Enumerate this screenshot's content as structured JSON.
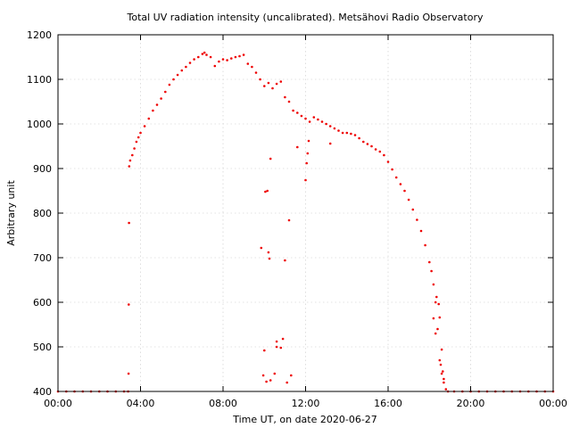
{
  "chart_data": {
    "type": "scatter",
    "title": "Total UV radiation intensity (uncalibrated). Metsähovi Radio Observatory",
    "xlabel": "Time UT, on date 2020-06-27",
    "ylabel": "Arbitrary unit",
    "xlim": [
      0,
      24
    ],
    "ylim": [
      400,
      1200
    ],
    "x_ticks": [
      0,
      4,
      8,
      12,
      16,
      20,
      24
    ],
    "x_tick_labels": [
      "00:00",
      "04:00",
      "08:00",
      "12:00",
      "16:00",
      "20:00",
      "00:00"
    ],
    "y_ticks": [
      400,
      500,
      600,
      700,
      800,
      900,
      1000,
      1100,
      1200
    ],
    "y_tick_labels": [
      "400",
      "500",
      "600",
      "700",
      "800",
      "900",
      "1000",
      "1100",
      "1200"
    ],
    "grid": true,
    "marker_color": "#ee0000",
    "series": [
      {
        "x_unit": "hours UT",
        "points": [
          [
            0.0,
            400
          ],
          [
            0.4,
            400
          ],
          [
            0.8,
            400
          ],
          [
            1.2,
            400
          ],
          [
            1.6,
            400
          ],
          [
            2.0,
            400
          ],
          [
            2.4,
            400
          ],
          [
            2.8,
            400
          ],
          [
            3.2,
            400
          ],
          [
            3.4,
            400
          ],
          [
            3.42,
            440
          ],
          [
            3.43,
            595
          ],
          [
            3.44,
            778
          ],
          [
            3.45,
            905
          ],
          [
            3.5,
            918
          ],
          [
            3.6,
            930
          ],
          [
            3.7,
            945
          ],
          [
            3.8,
            960
          ],
          [
            3.9,
            970
          ],
          [
            4.0,
            980
          ],
          [
            4.2,
            995
          ],
          [
            4.4,
            1012
          ],
          [
            4.6,
            1030
          ],
          [
            4.8,
            1043
          ],
          [
            5.0,
            1057
          ],
          [
            5.2,
            1072
          ],
          [
            5.4,
            1088
          ],
          [
            5.6,
            1100
          ],
          [
            5.8,
            1110
          ],
          [
            6.0,
            1120
          ],
          [
            6.2,
            1128
          ],
          [
            6.4,
            1137
          ],
          [
            6.6,
            1145
          ],
          [
            6.8,
            1150
          ],
          [
            7.0,
            1157
          ],
          [
            7.1,
            1160
          ],
          [
            7.2,
            1155
          ],
          [
            7.4,
            1150
          ],
          [
            7.6,
            1130
          ],
          [
            7.8,
            1140
          ],
          [
            8.0,
            1145
          ],
          [
            8.2,
            1143
          ],
          [
            8.4,
            1147
          ],
          [
            8.6,
            1150
          ],
          [
            8.8,
            1152
          ],
          [
            9.0,
            1155
          ],
          [
            9.2,
            1135
          ],
          [
            9.4,
            1128
          ],
          [
            9.6,
            1115
          ],
          [
            9.8,
            1100
          ],
          [
            10.0,
            1085
          ],
          [
            10.2,
            1092
          ],
          [
            10.4,
            1080
          ],
          [
            10.6,
            1090
          ],
          [
            10.8,
            1095
          ],
          [
            11.0,
            1060
          ],
          [
            11.2,
            1050
          ],
          [
            11.4,
            1030
          ],
          [
            11.6,
            1025
          ],
          [
            11.8,
            1018
          ],
          [
            12.0,
            1012
          ],
          [
            12.2,
            1005
          ],
          [
            12.4,
            1015
          ],
          [
            12.6,
            1010
          ],
          [
            12.8,
            1005
          ],
          [
            13.0,
            1000
          ],
          [
            13.2,
            995
          ],
          [
            13.4,
            990
          ],
          [
            13.6,
            985
          ],
          [
            13.8,
            980
          ],
          [
            14.0,
            980
          ],
          [
            14.2,
            978
          ],
          [
            14.4,
            975
          ],
          [
            14.6,
            968
          ],
          [
            14.8,
            960
          ],
          [
            15.0,
            955
          ],
          [
            15.2,
            950
          ],
          [
            15.4,
            943
          ],
          [
            15.6,
            938
          ],
          [
            15.8,
            930
          ],
          [
            16.0,
            915
          ],
          [
            16.2,
            898
          ],
          [
            16.4,
            880
          ],
          [
            16.6,
            865
          ],
          [
            16.8,
            850
          ],
          [
            17.0,
            830
          ],
          [
            17.2,
            808
          ],
          [
            17.4,
            785
          ],
          [
            17.6,
            760
          ],
          [
            17.8,
            728
          ],
          [
            18.0,
            690
          ],
          [
            18.1,
            670
          ],
          [
            18.2,
            640
          ],
          [
            18.3,
            600
          ],
          [
            18.4,
            540
          ],
          [
            18.5,
            470
          ],
          [
            18.6,
            440
          ],
          [
            18.7,
            420
          ],
          [
            18.8,
            405
          ],
          [
            18.9,
            400
          ],
          [
            19.2,
            400
          ],
          [
            19.6,
            400
          ],
          [
            20.0,
            400
          ],
          [
            20.4,
            400
          ],
          [
            20.8,
            400
          ],
          [
            21.2,
            400
          ],
          [
            21.6,
            400
          ],
          [
            22.0,
            400
          ],
          [
            22.4,
            400
          ],
          [
            22.8,
            400
          ],
          [
            23.2,
            400
          ],
          [
            23.6,
            400
          ],
          [
            24.0,
            400
          ],
          [
            9.85,
            722
          ],
          [
            10.0,
            492
          ],
          [
            10.05,
            848
          ],
          [
            10.15,
            850
          ],
          [
            10.2,
            712
          ],
          [
            10.25,
            698
          ],
          [
            10.3,
            922
          ],
          [
            10.3,
            425
          ],
          [
            10.5,
            440
          ],
          [
            10.6,
            500
          ],
          [
            10.6,
            512
          ],
          [
            10.8,
            498
          ],
          [
            10.9,
            518
          ],
          [
            11.0,
            694
          ],
          [
            11.1,
            420
          ],
          [
            11.2,
            784
          ],
          [
            11.3,
            436
          ],
          [
            11.6,
            948
          ],
          [
            12.0,
            874
          ],
          [
            12.05,
            912
          ],
          [
            12.1,
            934
          ],
          [
            12.15,
            962
          ],
          [
            13.2,
            956
          ],
          [
            18.35,
            612
          ],
          [
            18.45,
            596
          ],
          [
            18.5,
            566
          ],
          [
            18.6,
            494
          ],
          [
            18.55,
            460
          ],
          [
            18.7,
            428
          ],
          [
            18.2,
            564
          ],
          [
            18.3,
            530
          ],
          [
            9.95,
            436
          ],
          [
            10.1,
            422
          ],
          [
            18.65,
            445
          ]
        ]
      }
    ]
  }
}
